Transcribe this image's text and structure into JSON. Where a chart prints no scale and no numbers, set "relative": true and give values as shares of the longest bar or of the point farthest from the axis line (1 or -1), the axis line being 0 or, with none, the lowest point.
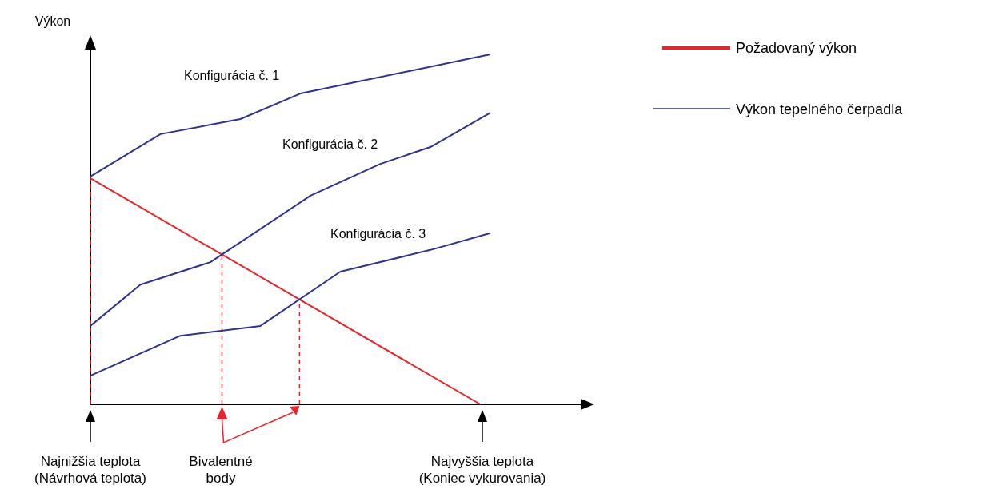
{
  "chart_data": {
    "type": "line",
    "relative": true,
    "ylabel": "Výkon",
    "legend": "right",
    "marker": "none",
    "line_style": "solid",
    "categories": [
      null,
      null,
      null,
      null,
      null,
      null,
      null,
      null,
      null,
      null,
      null,
      null,
      null,
      null,
      null,
      null,
      null,
      null,
      null,
      null,
      null,
      null,
      null,
      null,
      null,
      null,
      null,
      null,
      null,
      null,
      null,
      null,
      null,
      null,
      null,
      null,
      null,
      null,
      null,
      null,
      null
    ],
    "series": [
      {
        "name": "Požadovaný výkon",
        "color": "#e8232a",
        "values": [
          0.646,
          null,
          null,
          null,
          null,
          null,
          null,
          null,
          null,
          null,
          null,
          null,
          null,
          null,
          null,
          null,
          null,
          null,
          null,
          null,
          null,
          null,
          null,
          null,
          null,
          null,
          null,
          null,
          null,
          null,
          null,
          null,
          null,
          null,
          null,
          null,
          null,
          null,
          null,
          0,
          null
        ]
      },
      {
        "name": "Konfigurácia č. 1",
        "color": "#2e3192",
        "values": [
          0.651,
          null,
          null,
          null,
          null,
          null,
          null,
          0.772,
          null,
          null,
          null,
          null,
          null,
          null,
          null,
          0.815,
          null,
          null,
          null,
          null,
          null,
          0.888,
          null,
          null,
          null,
          null,
          null,
          null,
          null,
          null,
          null,
          null,
          null,
          null,
          null,
          null,
          null,
          null,
          null,
          null,
          1
        ]
      },
      {
        "name": "Konfigurácia č. 2",
        "color": "#2e3192",
        "values": [
          0.224,
          null,
          null,
          null,
          null,
          0.342,
          null,
          null,
          null,
          null,
          null,
          null,
          0.406,
          null,
          null,
          null,
          null,
          null,
          null,
          null,
          null,
          null,
          0.596,
          null,
          null,
          null,
          null,
          null,
          null,
          0.687,
          null,
          null,
          null,
          null,
          0.735,
          null,
          null,
          null,
          null,
          null,
          0.833
        ]
      },
      {
        "name": "Konfigurácia č. 3",
        "color": "#2e3192",
        "values": [
          0.082,
          null,
          null,
          null,
          null,
          null,
          null,
          null,
          null,
          0.196,
          null,
          null,
          null,
          null,
          null,
          null,
          null,
          0.224,
          null,
          null,
          null,
          null,
          null,
          null,
          null,
          0.379,
          null,
          null,
          null,
          null,
          null,
          null,
          null,
          null,
          0.441,
          null,
          null,
          null,
          null,
          null,
          0.489
        ]
      }
    ],
    "annotations": [
      "Najnižšia teplota\n(Návrhová teplota)",
      "Bivalentné\nbody",
      "Najvyššia teplota\n(Koniec vykurovania)",
      "Výkon tepelného čerpadla"
    ]
  }
}
